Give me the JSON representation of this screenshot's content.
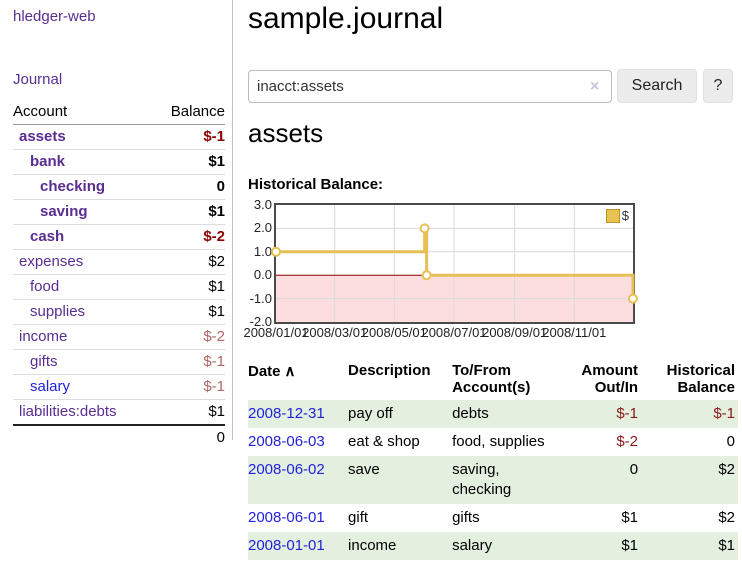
{
  "brand": "hledger-web",
  "nav": {
    "journal": "Journal"
  },
  "sidebar": {
    "headers": {
      "account": "Account",
      "balance": "Balance"
    },
    "accounts": [
      {
        "name": "assets",
        "balance": "$-1"
      },
      {
        "name": "bank",
        "balance": "$1"
      },
      {
        "name": "checking",
        "balance": "0"
      },
      {
        "name": "saving",
        "balance": "$1"
      },
      {
        "name": "cash",
        "balance": "$-2"
      },
      {
        "name": "expenses",
        "balance": "$2"
      },
      {
        "name": "food",
        "balance": "$1"
      },
      {
        "name": "supplies",
        "balance": "$1"
      },
      {
        "name": "income",
        "balance": "$-2"
      },
      {
        "name": "gifts",
        "balance": "$-1"
      },
      {
        "name": "salary",
        "balance": "$-1"
      },
      {
        "name": "liabilities:debts",
        "balance": "$1"
      }
    ],
    "total": "0"
  },
  "header": {
    "title": "sample.journal"
  },
  "search": {
    "value": "inacct:assets",
    "clear_icon": "×",
    "search_label": "Search",
    "help_label": "?"
  },
  "account_page": {
    "heading": "assets",
    "chart_title": "Historical Balance:"
  },
  "chart_data": {
    "type": "line",
    "step": true,
    "title": "Historical Balance",
    "legend": [
      {
        "label": "$",
        "color": "#e7c34f"
      }
    ],
    "legend_position": "top-right",
    "grid": true,
    "ylim": [
      -2.0,
      3.0
    ],
    "yticks": [
      3.0,
      2.0,
      1.0,
      0.0,
      -1.0,
      -2.0
    ],
    "xticks": [
      "2008/01/01",
      "2008/03/01",
      "2008/05/01",
      "2008/07/01",
      "2008/09/01",
      "2008/11/01"
    ],
    "xrange": [
      "2008/01/01",
      "2008/12/31"
    ],
    "series": [
      {
        "name": "$",
        "points": [
          {
            "x": "2008/01/01",
            "y": 1.0
          },
          {
            "x": "2008/06/01",
            "y": 2.0
          },
          {
            "x": "2008/06/03",
            "y": 0.0
          },
          {
            "x": "2008/12/31",
            "y": -1.0
          }
        ]
      }
    ],
    "colors": {
      "line": "#e6c055",
      "negative_fill": "#fcdede",
      "zero_line": "#990000",
      "grid": "#d9d9d9"
    }
  },
  "register": {
    "headers": {
      "date": "Date",
      "sort_icon": "∧",
      "description": "Description",
      "tofrom": "To/From Account(s)",
      "amount": "Amount Out/In",
      "balance": "Historical Balance"
    },
    "rows": [
      {
        "date": "2008-12-31",
        "description": "pay off",
        "accounts": "debts",
        "amount": "$-1",
        "balance": "$-1"
      },
      {
        "date": "2008-06-03",
        "description": "eat & shop",
        "accounts": "food, supplies",
        "amount": "$-2",
        "balance": "0"
      },
      {
        "date": "2008-06-02",
        "description": "save",
        "accounts": "saving, checking",
        "amount": "0",
        "balance": "$2"
      },
      {
        "date": "2008-06-01",
        "description": "gift",
        "accounts": "gifts",
        "amount": "$1",
        "balance": "$2"
      },
      {
        "date": "2008-01-01",
        "description": "income",
        "accounts": "salary",
        "amount": "$1",
        "balance": "$1"
      }
    ]
  }
}
